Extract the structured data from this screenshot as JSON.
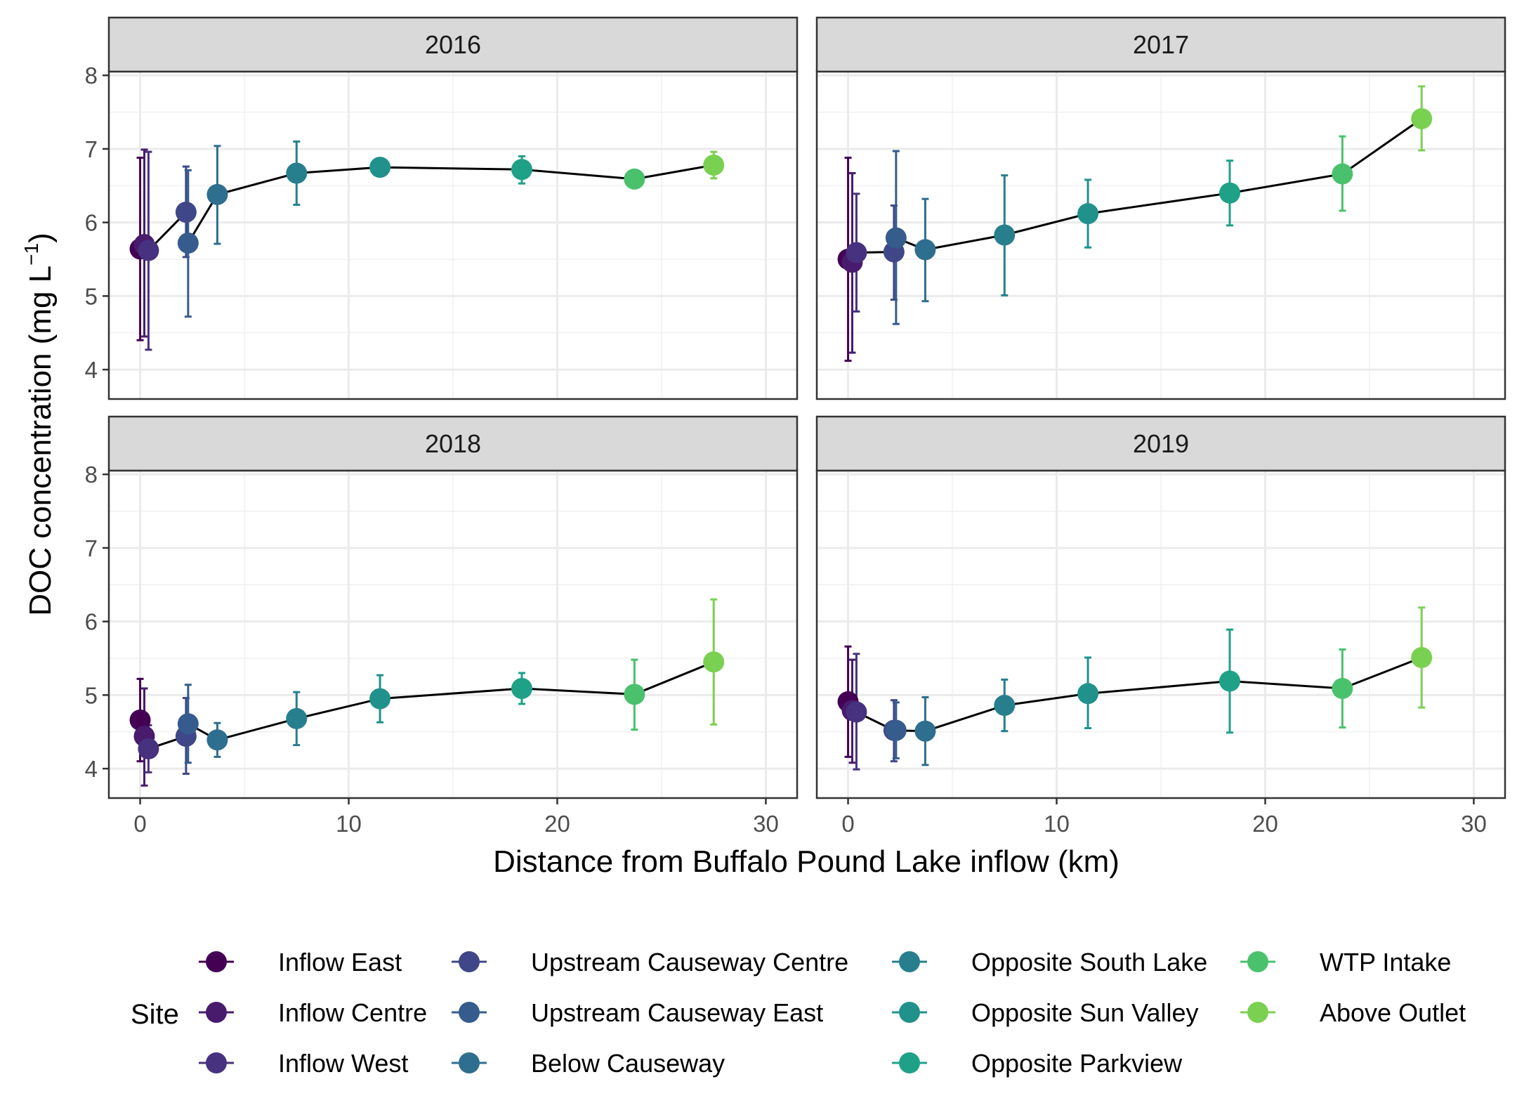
{
  "chart_data": {
    "type": "scatter",
    "facet_by": "year",
    "panels": [
      "2016",
      "2017",
      "2018",
      "2019"
    ],
    "xlabel": "Distance from Buffalo Pound Lake inflow (km)",
    "ylabel_main": "DOC concentration (mg L",
    "ylabel_sup": "−1",
    "ylabel_close": ")",
    "xlim": [
      -1.5,
      31.5
    ],
    "ylim": [
      3.6,
      8.05
    ],
    "x_ticks": [
      0,
      10,
      20,
      30
    ],
    "x_tick_labels": [
      "0",
      "10",
      "20",
      "30"
    ],
    "y_ticks": [
      4,
      5,
      6,
      7,
      8
    ],
    "y_tick_labels": [
      "4",
      "5",
      "6",
      "7",
      "8"
    ],
    "grid": true,
    "legend_position": "bottom",
    "legend_title": "Site",
    "sites": [
      {
        "name": "Inflow East",
        "x": 0.0,
        "color": "#440154"
      },
      {
        "name": "Inflow Centre",
        "x": 0.2,
        "color": "#481b6d"
      },
      {
        "name": "Inflow West",
        "x": 0.4,
        "color": "#46327e"
      },
      {
        "name": "Upstream Causeway Centre",
        "x": 2.2,
        "color": "#3f4788"
      },
      {
        "name": "Upstream Causeway East",
        "x": 2.3,
        "color": "#365c8d"
      },
      {
        "name": "Below Causeway",
        "x": 3.7,
        "color": "#2e6e8e"
      },
      {
        "name": "Opposite South Lake",
        "x": 7.5,
        "color": "#277f8e"
      },
      {
        "name": "Opposite Sun Valley",
        "x": 11.5,
        "color": "#21918c"
      },
      {
        "name": "Opposite Parkview",
        "x": 18.3,
        "color": "#1fa187"
      },
      {
        "name": "WTP Intake",
        "x": 23.7,
        "color": "#4ac16d"
      },
      {
        "name": "Above Outlet",
        "x": 27.5,
        "color": "#7ad151"
      }
    ],
    "series": [
      {
        "panel": "2016",
        "mean": [
          5.64,
          5.7,
          5.62,
          6.14,
          5.72,
          6.38,
          6.67,
          6.75,
          6.72,
          6.59,
          6.78
        ],
        "lower": [
          4.4,
          4.45,
          4.27,
          5.53,
          4.72,
          5.71,
          6.24,
          null,
          6.53,
          null,
          6.6
        ],
        "upper": [
          6.88,
          6.99,
          6.96,
          6.76,
          6.71,
          7.04,
          7.1,
          null,
          6.9,
          null,
          6.96
        ]
      },
      {
        "panel": "2017",
        "mean": [
          5.5,
          5.46,
          5.59,
          5.6,
          5.79,
          5.63,
          5.83,
          6.12,
          6.4,
          6.66,
          7.41
        ],
        "lower": [
          4.12,
          4.23,
          4.79,
          4.95,
          4.62,
          4.93,
          5.01,
          5.66,
          5.96,
          6.16,
          6.98
        ],
        "upper": [
          6.88,
          6.67,
          6.39,
          6.23,
          6.97,
          6.32,
          6.64,
          6.58,
          6.84,
          7.17,
          7.85
        ]
      },
      {
        "panel": "2018",
        "mean": [
          4.66,
          4.44,
          4.27,
          4.44,
          4.61,
          4.39,
          4.68,
          4.95,
          5.09,
          5.01,
          5.45
        ],
        "lower": [
          4.1,
          3.77,
          3.95,
          3.93,
          4.08,
          4.16,
          4.32,
          4.63,
          4.88,
          4.53,
          4.6
        ],
        "upper": [
          5.22,
          5.09,
          4.59,
          4.96,
          5.14,
          4.62,
          5.04,
          5.27,
          5.3,
          5.48,
          6.3
        ]
      },
      {
        "panel": "2019",
        "mean": [
          4.91,
          4.79,
          4.77,
          4.52,
          4.52,
          4.51,
          4.86,
          5.02,
          5.19,
          5.09,
          5.51
        ],
        "lower": [
          4.16,
          4.08,
          3.99,
          4.1,
          4.14,
          4.05,
          4.51,
          4.55,
          4.49,
          4.56,
          4.83
        ],
        "upper": [
          5.66,
          5.48,
          5.56,
          4.93,
          4.9,
          4.97,
          5.21,
          5.51,
          5.89,
          5.62,
          6.19
        ]
      }
    ]
  }
}
